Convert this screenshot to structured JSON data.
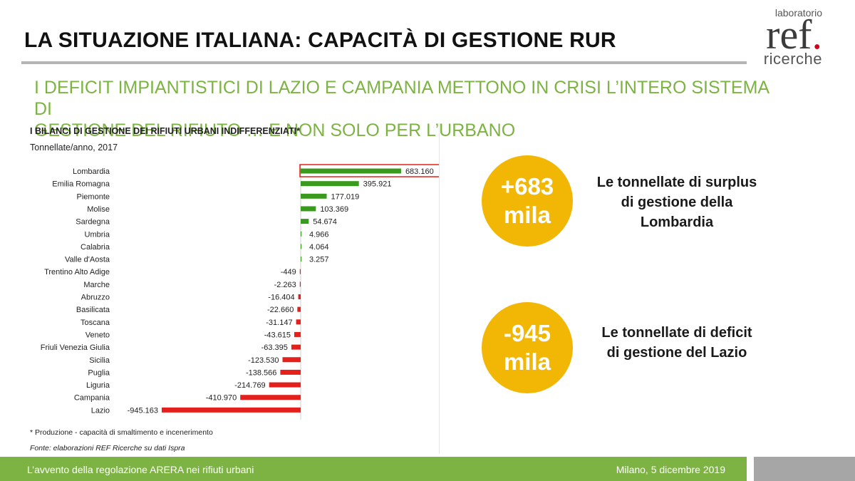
{
  "header": {
    "title": "LA SITUAZIONE ITALIANA: CAPACITÀ DI GESTIONE RUR",
    "subtitle_line1": "I DEFICIT IMPIANTISTICI DI LAZIO E CAMPANIA METTONO IN CRISI L’INTERO SISTEMA DI",
    "subtitle_line2": "GESTIONE DEL RIFIUTO … E NON SOLO PER L’URBANO"
  },
  "logo": {
    "top": "laboratorio",
    "main": "ref",
    "dot": ".",
    "bottom": "ricerche"
  },
  "chart_data": {
    "type": "bar",
    "orientation": "horizontal",
    "title": "I BILANCI DI GESTIONE DEI RIFIUTI URBANI INDIFFERENZIATI*",
    "unit": "Tonnellate/anno, 2017",
    "categories": [
      "Lombardia",
      "Emilia Romagna",
      "Piemonte",
      "Molise",
      "Sardegna",
      "Umbria",
      "Calabria",
      "Valle d'Aosta",
      "Trentino Alto Adige",
      "Marche",
      "Abruzzo",
      "Basilicata",
      "Toscana",
      "Veneto",
      "Friuli Venezia Giulia",
      "Sicilia",
      "Puglia",
      "Liguria",
      "Campania",
      "Lazio"
    ],
    "values": [
      683160,
      395921,
      177019,
      103369,
      54674,
      4966,
      4064,
      3257,
      -449,
      -2263,
      -16404,
      -22660,
      -31147,
      -43615,
      -63395,
      -123530,
      -138566,
      -214769,
      -410970,
      -945163
    ],
    "value_labels": [
      "683.160",
      "395.921",
      "177.019",
      "103.369",
      "54.674",
      "4.966",
      "4.064",
      "3.257",
      "-449",
      "-2.263",
      "-16.404",
      "-22.660",
      "-31.147",
      "-43.615",
      "-63.395",
      "-123.530",
      "-138.566",
      "-214.769",
      "-410.970",
      "-945.163"
    ],
    "highlighted_category": "Lombardia",
    "positive_color": "#3a9a1e",
    "negative_color": "#e3201b",
    "highlight_color": "#e3201b",
    "note": "* Produzione - capacità di smaltimento e incenerimento",
    "source": "Fonte: elaborazioni REF Ricerche su dati Ispra"
  },
  "callouts": [
    {
      "value_line1": "+683",
      "value_line2": "mila",
      "text_line1": "Le tonnellate di surplus",
      "text_line2": "di gestione della",
      "text_line3": "Lombardia"
    },
    {
      "value_line1": "-945",
      "value_line2": "mila",
      "text_line1": "Le tonnellate di deficit",
      "text_line2": "di gestione del Lazio",
      "text_line3": ""
    }
  ],
  "colors": {
    "accent_green": "#7cb342",
    "circle_yellow": "#f2b705"
  },
  "footer": {
    "left": "L’avvento della regolazione ARERA nei rifiuti urbani",
    "right": "Milano, 5 dicembre 2019"
  }
}
